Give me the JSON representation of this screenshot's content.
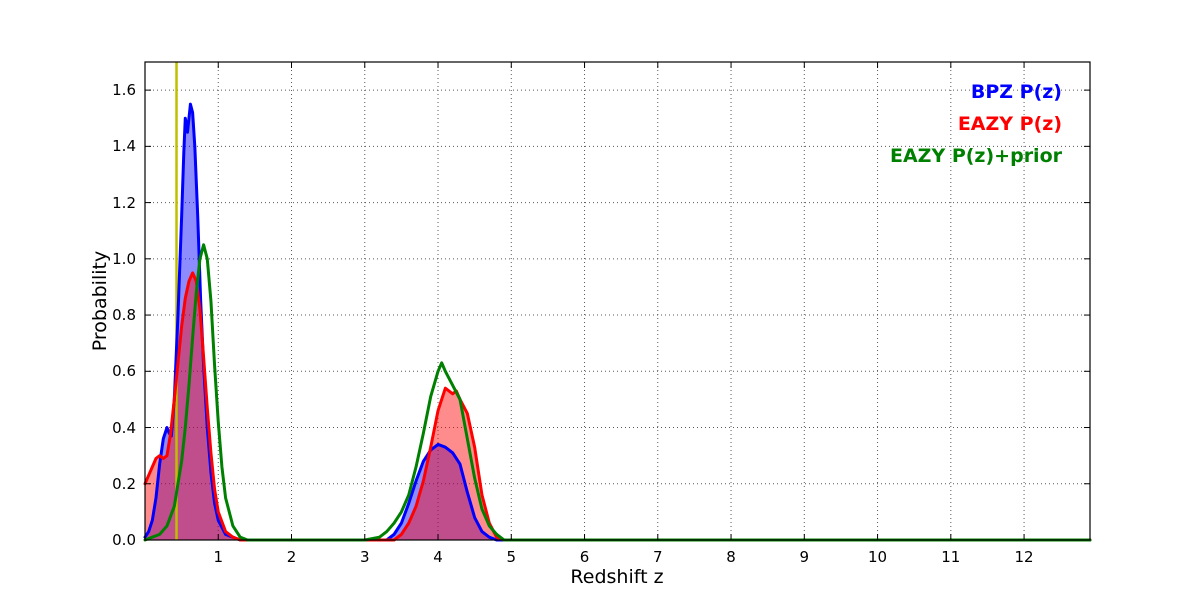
{
  "figure": {
    "background": "#ffffff",
    "plot_background": "#ffffff",
    "grid_color": "#000000"
  },
  "chart_data": {
    "type": "area",
    "title": "",
    "xlabel": "Redshift z",
    "ylabel": "Probability",
    "xlim": [
      0,
      12.9
    ],
    "ylim": [
      0,
      1.7
    ],
    "xticks": [
      1,
      2,
      3,
      4,
      5,
      6,
      7,
      8,
      9,
      10,
      11,
      12
    ],
    "yticks": [
      0.0,
      0.2,
      0.4,
      0.6,
      0.8,
      1.0,
      1.2,
      1.4,
      1.6
    ],
    "grid": true,
    "legend_position": "upper right",
    "vline": {
      "x": 0.43,
      "color": "#bfbf00",
      "width": 2.5
    },
    "series": [
      {
        "name": "BPZ P(z)",
        "color": "#0000ff",
        "fill": true,
        "fill_alpha": 0.45,
        "line_width": 3,
        "points": [
          [
            0.0,
            0.01
          ],
          [
            0.05,
            0.03
          ],
          [
            0.1,
            0.07
          ],
          [
            0.15,
            0.15
          ],
          [
            0.2,
            0.27
          ],
          [
            0.25,
            0.36
          ],
          [
            0.3,
            0.4
          ],
          [
            0.33,
            0.38
          ],
          [
            0.36,
            0.37
          ],
          [
            0.4,
            0.5
          ],
          [
            0.45,
            0.8
          ],
          [
            0.5,
            1.15
          ],
          [
            0.53,
            1.38
          ],
          [
            0.55,
            1.5
          ],
          [
            0.58,
            1.45
          ],
          [
            0.62,
            1.55
          ],
          [
            0.65,
            1.52
          ],
          [
            0.68,
            1.4
          ],
          [
            0.72,
            1.15
          ],
          [
            0.76,
            0.85
          ],
          [
            0.8,
            0.62
          ],
          [
            0.85,
            0.4
          ],
          [
            0.9,
            0.24
          ],
          [
            0.95,
            0.13
          ],
          [
            1.0,
            0.07
          ],
          [
            1.1,
            0.02
          ],
          [
            1.2,
            0.01
          ],
          [
            1.3,
            0.0
          ],
          [
            2.0,
            0.0
          ],
          [
            3.0,
            0.0
          ],
          [
            3.3,
            0.0
          ],
          [
            3.4,
            0.02
          ],
          [
            3.5,
            0.06
          ],
          [
            3.6,
            0.13
          ],
          [
            3.7,
            0.21
          ],
          [
            3.8,
            0.28
          ],
          [
            3.9,
            0.32
          ],
          [
            4.0,
            0.34
          ],
          [
            4.1,
            0.33
          ],
          [
            4.2,
            0.31
          ],
          [
            4.3,
            0.27
          ],
          [
            4.4,
            0.17
          ],
          [
            4.5,
            0.08
          ],
          [
            4.6,
            0.03
          ],
          [
            4.7,
            0.01
          ],
          [
            4.8,
            0.0
          ],
          [
            6.0,
            0.0
          ],
          [
            8.0,
            0.0
          ],
          [
            10.0,
            0.0
          ],
          [
            12.0,
            0.0
          ],
          [
            12.9,
            0.0
          ]
        ]
      },
      {
        "name": "EAZY P(z)",
        "color": "#ff0000",
        "fill": true,
        "fill_alpha": 0.45,
        "line_width": 3,
        "points": [
          [
            0.0,
            0.2
          ],
          [
            0.05,
            0.23
          ],
          [
            0.1,
            0.26
          ],
          [
            0.15,
            0.29
          ],
          [
            0.2,
            0.3
          ],
          [
            0.25,
            0.29
          ],
          [
            0.3,
            0.3
          ],
          [
            0.35,
            0.38
          ],
          [
            0.4,
            0.5
          ],
          [
            0.45,
            0.63
          ],
          [
            0.5,
            0.76
          ],
          [
            0.55,
            0.86
          ],
          [
            0.6,
            0.92
          ],
          [
            0.65,
            0.95
          ],
          [
            0.7,
            0.92
          ],
          [
            0.75,
            0.82
          ],
          [
            0.8,
            0.65
          ],
          [
            0.85,
            0.47
          ],
          [
            0.9,
            0.31
          ],
          [
            0.95,
            0.18
          ],
          [
            1.0,
            0.1
          ],
          [
            1.1,
            0.03
          ],
          [
            1.2,
            0.01
          ],
          [
            1.3,
            0.0
          ],
          [
            2.0,
            0.0
          ],
          [
            3.0,
            0.0
          ],
          [
            3.4,
            0.0
          ],
          [
            3.5,
            0.02
          ],
          [
            3.6,
            0.06
          ],
          [
            3.7,
            0.12
          ],
          [
            3.8,
            0.21
          ],
          [
            3.9,
            0.33
          ],
          [
            4.0,
            0.46
          ],
          [
            4.1,
            0.54
          ],
          [
            4.2,
            0.52
          ],
          [
            4.25,
            0.53
          ],
          [
            4.3,
            0.5
          ],
          [
            4.4,
            0.45
          ],
          [
            4.5,
            0.33
          ],
          [
            4.6,
            0.16
          ],
          [
            4.7,
            0.06
          ],
          [
            4.8,
            0.01
          ],
          [
            4.9,
            0.0
          ],
          [
            6.0,
            0.0
          ],
          [
            8.0,
            0.0
          ],
          [
            10.0,
            0.0
          ],
          [
            12.9,
            0.0
          ]
        ]
      },
      {
        "name": "EAZY P(z)+prior",
        "color": "#008000",
        "fill": false,
        "fill_alpha": 0,
        "line_width": 3,
        "points": [
          [
            0.0,
            0.0
          ],
          [
            0.1,
            0.01
          ],
          [
            0.2,
            0.02
          ],
          [
            0.3,
            0.05
          ],
          [
            0.4,
            0.12
          ],
          [
            0.5,
            0.28
          ],
          [
            0.55,
            0.4
          ],
          [
            0.6,
            0.55
          ],
          [
            0.65,
            0.72
          ],
          [
            0.7,
            0.88
          ],
          [
            0.75,
            1.0
          ],
          [
            0.8,
            1.05
          ],
          [
            0.85,
            1.0
          ],
          [
            0.9,
            0.85
          ],
          [
            0.95,
            0.62
          ],
          [
            1.0,
            0.42
          ],
          [
            1.05,
            0.26
          ],
          [
            1.1,
            0.15
          ],
          [
            1.2,
            0.05
          ],
          [
            1.3,
            0.01
          ],
          [
            1.4,
            0.0
          ],
          [
            2.0,
            0.0
          ],
          [
            3.0,
            0.0
          ],
          [
            3.2,
            0.01
          ],
          [
            3.3,
            0.03
          ],
          [
            3.4,
            0.06
          ],
          [
            3.5,
            0.1
          ],
          [
            3.6,
            0.16
          ],
          [
            3.7,
            0.26
          ],
          [
            3.8,
            0.38
          ],
          [
            3.9,
            0.51
          ],
          [
            4.0,
            0.6
          ],
          [
            4.05,
            0.63
          ],
          [
            4.1,
            0.6
          ],
          [
            4.2,
            0.55
          ],
          [
            4.3,
            0.5
          ],
          [
            4.4,
            0.36
          ],
          [
            4.5,
            0.22
          ],
          [
            4.6,
            0.11
          ],
          [
            4.7,
            0.05
          ],
          [
            4.8,
            0.02
          ],
          [
            4.9,
            0.0
          ],
          [
            6.0,
            0.0
          ],
          [
            8.0,
            0.0
          ],
          [
            10.0,
            0.0
          ],
          [
            12.9,
            0.0
          ]
        ]
      }
    ]
  },
  "legend": {
    "items": [
      {
        "label": "BPZ P(z)",
        "color": "#0000ff"
      },
      {
        "label": "EAZY P(z)",
        "color": "#ff0000"
      },
      {
        "label": "EAZY P(z)+prior",
        "color": "#008000"
      }
    ]
  }
}
